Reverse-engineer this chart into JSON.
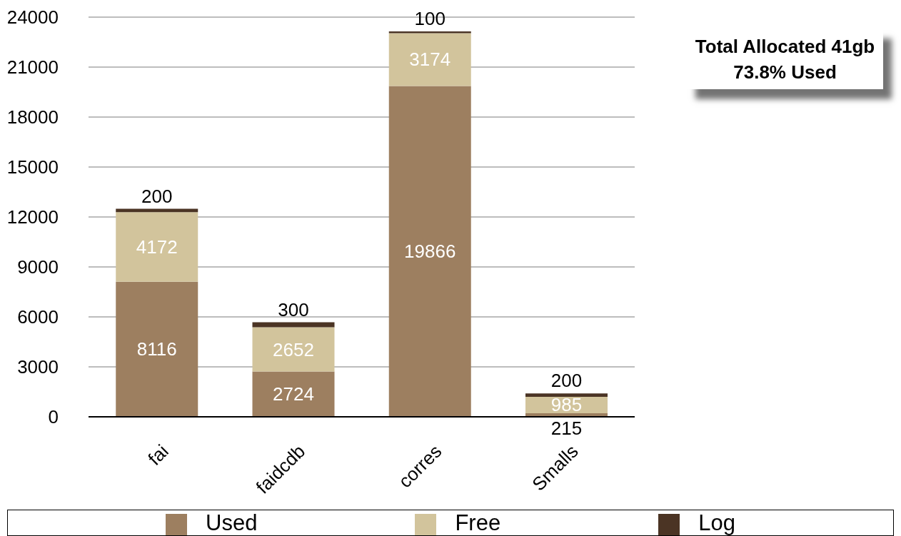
{
  "chart_data": {
    "type": "bar",
    "categories": [
      "fai",
      "faidcdb",
      "corres",
      "Smalls"
    ],
    "series": [
      {
        "name": "Used",
        "color": "#9d7f60",
        "values": [
          8116,
          2724,
          19866,
          215
        ]
      },
      {
        "name": "Free",
        "color": "#d2c49c",
        "values": [
          4172,
          2652,
          3174,
          985
        ]
      },
      {
        "name": "Log",
        "color": "#4b3424",
        "values": [
          200,
          300,
          100,
          200
        ]
      }
    ],
    "stacked": true,
    "ylim": [
      0,
      24000
    ],
    "yticks": [
      0,
      3000,
      6000,
      9000,
      12000,
      15000,
      18000,
      21000,
      24000
    ],
    "grid": "y",
    "legend": "bottom",
    "data_labels": true,
    "annotations": [
      "Total Allocated 41gb",
      "73.8% Used"
    ]
  }
}
